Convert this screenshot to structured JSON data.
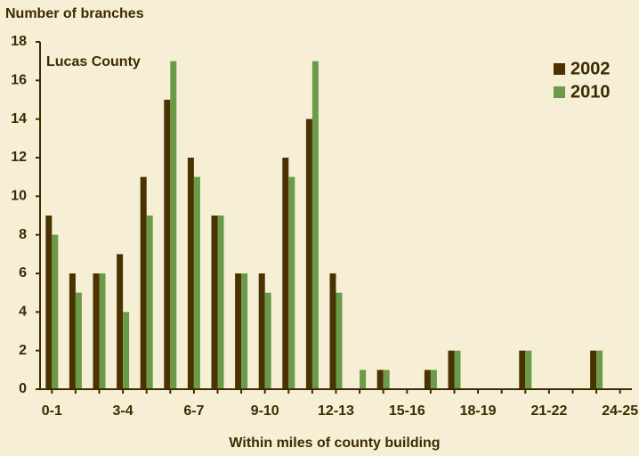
{
  "chart_data": {
    "type": "bar",
    "title": "Number of branches",
    "x_label": "Within miles of county building",
    "annotation": "Lucas County",
    "categories": [
      "0-1",
      null,
      null,
      "3-4",
      null,
      null,
      "6-7",
      null,
      null,
      "9-10",
      null,
      null,
      "12-13",
      null,
      null,
      "15-16",
      null,
      null,
      "18-19",
      null,
      null,
      "21-22",
      null,
      null,
      "24-25"
    ],
    "series": [
      {
        "name": "2002",
        "color": "#4a3300",
        "values": [
          9,
          6,
          6,
          7,
          11,
          15,
          12,
          9,
          6,
          6,
          12,
          14,
          6,
          0,
          1,
          0,
          1,
          2,
          0,
          0,
          2,
          0,
          0,
          2,
          0
        ]
      },
      {
        "name": "2010",
        "color": "#6b9a48",
        "values": [
          8,
          5,
          6,
          4,
          9,
          17,
          11,
          9,
          6,
          5,
          11,
          17,
          5,
          1,
          1,
          0,
          1,
          2,
          0,
          0,
          2,
          0,
          0,
          2,
          0
        ]
      }
    ],
    "ylim": [
      0,
      18
    ],
    "yticks": [
      0,
      2,
      4,
      6,
      8,
      10,
      12,
      14,
      16,
      18
    ],
    "legend": "upper right"
  }
}
